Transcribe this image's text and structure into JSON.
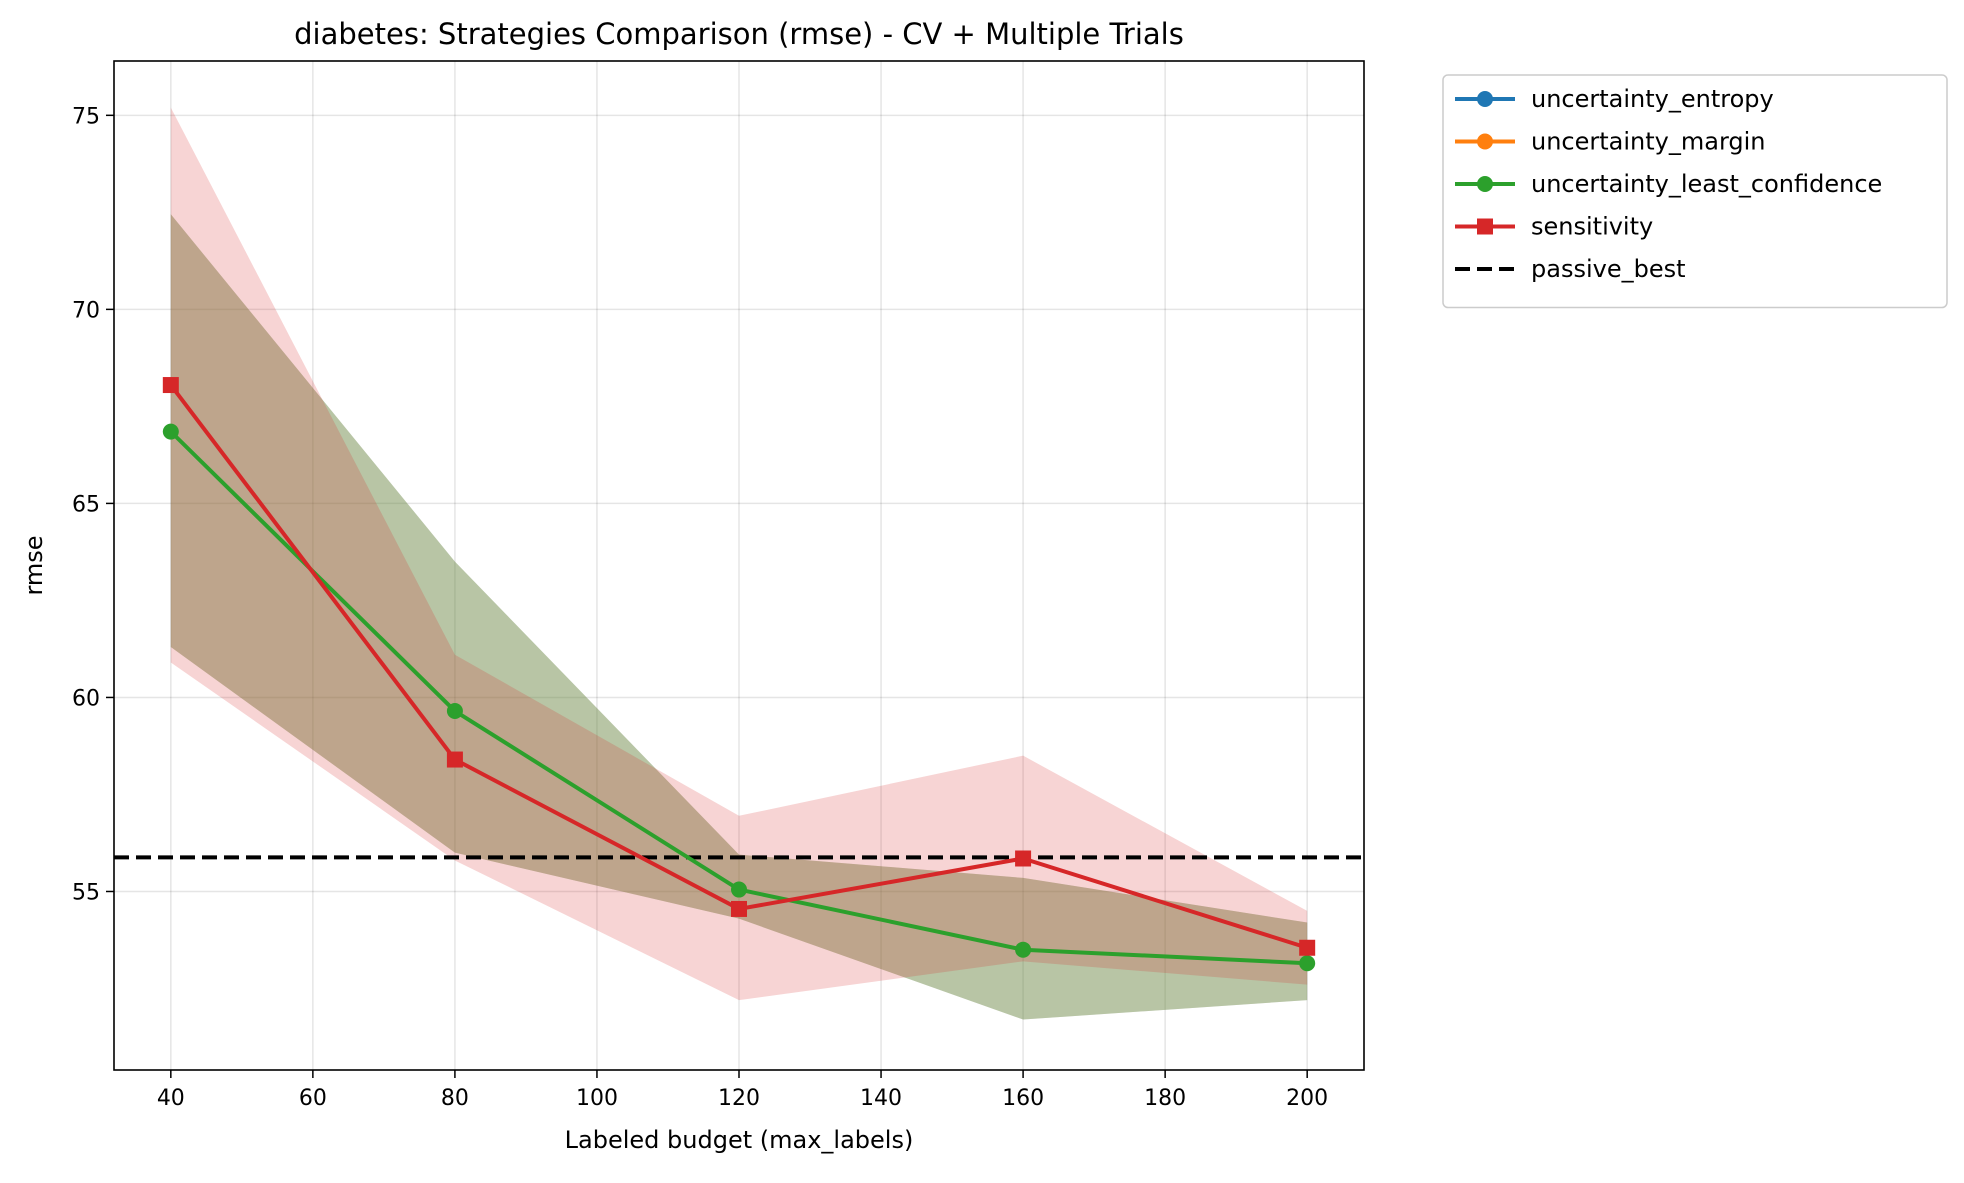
{
  "chart_data": {
    "type": "line",
    "title": "diabetes: Strategies Comparison (rmse) - CV + Multiple Trials",
    "xlabel": "Labeled budget (max_labels)",
    "ylabel": "rmse",
    "xlim": [
      32,
      208
    ],
    "ylim": [
      50.4,
      76.4
    ],
    "xticks": [
      40,
      60,
      80,
      100,
      120,
      140,
      160,
      180,
      200
    ],
    "yticks": [
      55,
      60,
      65,
      70,
      75
    ],
    "grid": true,
    "legend_position": "outside-right",
    "x": [
      40,
      80,
      120,
      160,
      200
    ],
    "series": [
      {
        "name": "uncertainty_entropy",
        "color": "#1f77b4",
        "marker": "circle",
        "values": [
          66.85,
          59.65,
          55.05,
          53.5,
          53.15
        ],
        "band_lower": [
          61.3,
          56.0,
          54.3,
          51.7,
          52.2
        ],
        "band_upper": [
          72.45,
          63.5,
          55.95,
          55.35,
          54.2
        ],
        "hidden": true
      },
      {
        "name": "uncertainty_margin",
        "color": "#ff7f0e",
        "marker": "circle",
        "values": [
          66.85,
          59.65,
          55.05,
          53.5,
          53.15
        ],
        "band_lower": [
          61.3,
          56.0,
          54.3,
          51.7,
          52.2
        ],
        "band_upper": [
          72.45,
          63.5,
          55.95,
          55.35,
          54.2
        ],
        "hidden": true
      },
      {
        "name": "uncertainty_least_confidence",
        "color": "#2ca02c",
        "marker": "circle",
        "values": [
          66.85,
          59.65,
          55.05,
          53.5,
          53.15
        ],
        "band_lower": [
          61.3,
          56.0,
          54.3,
          51.7,
          52.2
        ],
        "band_upper": [
          72.45,
          63.5,
          55.95,
          55.35,
          54.2
        ]
      },
      {
        "name": "sensitivity",
        "color": "#d62728",
        "marker": "square",
        "values": [
          68.05,
          58.4,
          54.55,
          55.85,
          53.55
        ],
        "band_lower": [
          60.9,
          55.8,
          52.2,
          53.2,
          52.6
        ],
        "band_upper": [
          75.2,
          61.1,
          56.95,
          58.5,
          54.5
        ]
      }
    ],
    "reference_lines": [
      {
        "name": "passive_best",
        "y": 55.88,
        "color": "#000000",
        "style": "dashed"
      }
    ]
  }
}
